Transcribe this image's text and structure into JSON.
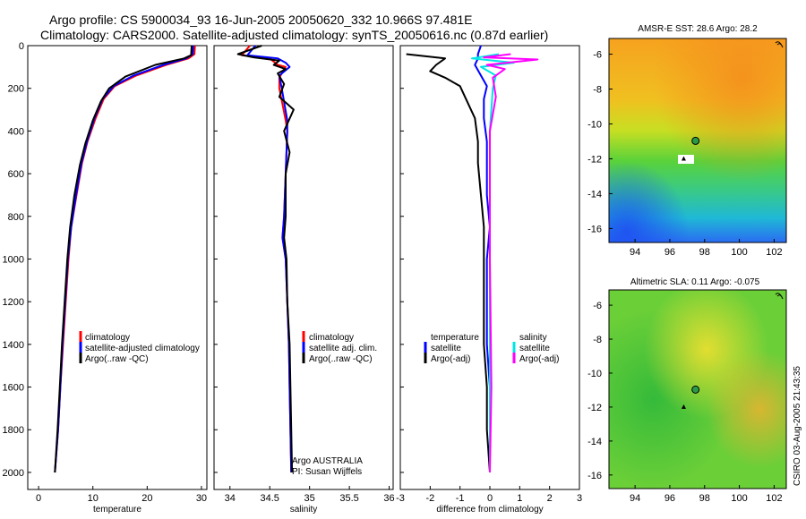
{
  "title": {
    "line1": "Argo profile: CS 5900034_93 16-Jun-2005 20050620_332 10.966S 97.481E",
    "line2": "Climatology: CARS2000. Satellite-adjusted climatology: synTS_20050616.nc (0.87d earlier)"
  },
  "colors": {
    "climatology": "#ff0000",
    "satellite": "#0000ff",
    "argo": "#000000",
    "salinity_sat": "#00e5e5",
    "salinity_argo": "#ff00ff",
    "marker": "#2a9a4a"
  },
  "chart_data": [
    {
      "type": "line",
      "id": "temperature",
      "xlabel": "temperature",
      "xlim": [
        -2,
        31
      ],
      "ylim": [
        0,
        2080
      ],
      "y_inverted": true,
      "xticks": [
        0,
        10,
        20,
        30
      ],
      "xtick_labels": [
        "0",
        "10",
        "20",
        "30"
      ],
      "yticks": [
        0,
        200,
        400,
        600,
        800,
        1000,
        1200,
        1400,
        1600,
        1800,
        2000
      ],
      "ytick_labels": [
        "0",
        "200",
        "400",
        "600",
        "800",
        "1000",
        "1200",
        "1400",
        "1600",
        "1800",
        "2000"
      ],
      "legend": [
        "climatology",
        "satellite-adjusted climatology",
        "Argo(..raw -QC)"
      ],
      "series": [
        {
          "name": "climatology",
          "color": "#ff0000",
          "points": [
            [
              28.8,
              0
            ],
            [
              28.7,
              40
            ],
            [
              27.6,
              60
            ],
            [
              23.5,
              90
            ],
            [
              18,
              140
            ],
            [
              14,
              190
            ],
            [
              12,
              250
            ],
            [
              10.5,
              340
            ],
            [
              9,
              450
            ],
            [
              8,
              550
            ],
            [
              7,
              700
            ],
            [
              6,
              850
            ],
            [
              5.5,
              1000
            ],
            [
              5,
              1200
            ],
            [
              4.5,
              1400
            ],
            [
              4,
              1600
            ],
            [
              3.6,
              1800
            ],
            [
              3,
              2000
            ]
          ]
        },
        {
          "name": "satellite-adjusted climatology",
          "color": "#0000ff",
          "points": [
            [
              28.5,
              0
            ],
            [
              28.4,
              40
            ],
            [
              27.2,
              60
            ],
            [
              23,
              90
            ],
            [
              17.5,
              140
            ],
            [
              13.8,
              190
            ],
            [
              11.8,
              250
            ],
            [
              10.3,
              340
            ],
            [
              8.9,
              450
            ],
            [
              7.9,
              550
            ],
            [
              6.9,
              700
            ],
            [
              6,
              850
            ],
            [
              5.4,
              1000
            ],
            [
              4.9,
              1200
            ],
            [
              4.4,
              1400
            ],
            [
              4,
              1600
            ],
            [
              3.6,
              1800
            ],
            [
              3,
              2000
            ]
          ]
        },
        {
          "name": "Argo(..raw -QC)",
          "color": "#000000",
          "points": [
            [
              28.2,
              0
            ],
            [
              28.1,
              45
            ],
            [
              26.8,
              60
            ],
            [
              21.5,
              90
            ],
            [
              16,
              145
            ],
            [
              13,
              200
            ],
            [
              11.5,
              260
            ],
            [
              10,
              350
            ],
            [
              8.6,
              460
            ],
            [
              7.6,
              560
            ],
            [
              6.6,
              700
            ],
            [
              5.8,
              850
            ],
            [
              5.3,
              1000
            ],
            [
              4.8,
              1200
            ],
            [
              4.3,
              1400
            ],
            [
              3.9,
              1600
            ],
            [
              3.5,
              1800
            ],
            [
              3,
              2000
            ]
          ]
        }
      ]
    },
    {
      "type": "line",
      "id": "salinity",
      "xlabel": "salinity",
      "xlim": [
        33.8,
        36.05
      ],
      "ylim": [
        0,
        2080
      ],
      "y_inverted": true,
      "xticks": [
        34,
        34.5,
        35,
        35.5,
        36
      ],
      "xtick_labels": [
        "34",
        "34.5",
        "35",
        "35.5",
        "36"
      ],
      "legend": [
        "climatology",
        "satellite adj. clim.",
        "Argo(..raw -QC)"
      ],
      "annotation": [
        "Argo AUSTRALIA",
        "PI: Susan Wijffels"
      ],
      "series": [
        {
          "name": "climatology",
          "color": "#ff0000",
          "points": [
            [
              34.25,
              0
            ],
            [
              34.15,
              45
            ],
            [
              34.5,
              60
            ],
            [
              34.6,
              90
            ],
            [
              34.7,
              100
            ],
            [
              34.62,
              150
            ],
            [
              34.62,
              200
            ],
            [
              34.7,
              350
            ],
            [
              34.72,
              400
            ],
            [
              34.7,
              600
            ],
            [
              34.68,
              800
            ],
            [
              34.66,
              900
            ],
            [
              34.7,
              1000
            ],
            [
              34.72,
              1200
            ],
            [
              34.74,
              1400
            ],
            [
              34.75,
              1600
            ],
            [
              34.76,
              1800
            ],
            [
              34.77,
              2000
            ]
          ]
        },
        {
          "name": "satellite adj. clim.",
          "color": "#0000ff",
          "points": [
            [
              34.32,
              0
            ],
            [
              34.22,
              45
            ],
            [
              34.6,
              60
            ],
            [
              34.7,
              80
            ],
            [
              34.75,
              100
            ],
            [
              34.62,
              140
            ],
            [
              34.65,
              200
            ],
            [
              34.72,
              350
            ],
            [
              34.72,
              400
            ],
            [
              34.7,
              600
            ],
            [
              34.68,
              800
            ],
            [
              34.66,
              900
            ],
            [
              34.7,
              1000
            ],
            [
              34.72,
              1200
            ],
            [
              34.74,
              1400
            ],
            [
              34.75,
              1600
            ],
            [
              34.76,
              1800
            ],
            [
              34.77,
              2000
            ]
          ]
        },
        {
          "name": "Argo(..raw -QC)",
          "color": "#000000",
          "points": [
            [
              34.4,
              0
            ],
            [
              34.1,
              40
            ],
            [
              34.3,
              55
            ],
            [
              34.62,
              70
            ],
            [
              34.55,
              90
            ],
            [
              34.7,
              110
            ],
            [
              34.6,
              130
            ],
            [
              34.68,
              180
            ],
            [
              34.62,
              240
            ],
            [
              34.8,
              300
            ],
            [
              34.68,
              400
            ],
            [
              34.75,
              500
            ],
            [
              34.7,
              600
            ],
            [
              34.7,
              800
            ],
            [
              34.68,
              900
            ],
            [
              34.71,
              1000
            ],
            [
              34.72,
              1200
            ],
            [
              34.75,
              1400
            ],
            [
              34.76,
              1600
            ],
            [
              34.77,
              1800
            ],
            [
              34.78,
              2000
            ]
          ]
        }
      ]
    },
    {
      "type": "line",
      "id": "difference",
      "xlabel": "difference from climatology",
      "xlim": [
        -3,
        3
      ],
      "ylim": [
        0,
        2080
      ],
      "y_inverted": true,
      "xticks": [
        -3,
        -2,
        -1,
        0,
        1,
        2,
        3
      ],
      "xtick_labels": [
        "-3",
        "-2",
        "-1",
        "0",
        "1",
        "2",
        "3"
      ],
      "legend_left": [
        "temperature",
        "satellite",
        "Argo(-adj)"
      ],
      "legend_right": [
        "salinity",
        "satellite",
        "Argo(-adj)"
      ],
      "series": [
        {
          "name": "temperature satellite",
          "color": "#0000ff",
          "points": [
            [
              -0.3,
              0
            ],
            [
              -0.4,
              40
            ],
            [
              -0.4,
              60
            ],
            [
              -0.5,
              90
            ],
            [
              -0.3,
              140
            ],
            [
              -0.1,
              190
            ],
            [
              -0.2,
              250
            ],
            [
              -0.2,
              340
            ],
            [
              -0.1,
              450
            ],
            [
              -0.1,
              550
            ],
            [
              -0.1,
              700
            ],
            [
              0,
              850
            ],
            [
              -0.1,
              1000
            ],
            [
              -0.1,
              1200
            ],
            [
              -0.1,
              1400
            ],
            [
              0,
              1600
            ],
            [
              0,
              1800
            ],
            [
              0,
              2000
            ]
          ]
        },
        {
          "name": "temperature Argo(-adj)",
          "color": "#000000",
          "points": [
            [
              -2.8,
              40
            ],
            [
              -1.5,
              60
            ],
            [
              -1.8,
              90
            ],
            [
              -2,
              120
            ],
            [
              -1.5,
              150
            ],
            [
              -1.0,
              190
            ],
            [
              -0.8,
              250
            ],
            [
              -0.5,
              340
            ],
            [
              -0.4,
              450
            ],
            [
              -0.4,
              550
            ],
            [
              -0.3,
              700
            ],
            [
              -0.2,
              850
            ],
            [
              -0.2,
              1000
            ],
            [
              -0.2,
              1200
            ],
            [
              -0.2,
              1400
            ],
            [
              -0.1,
              1600
            ],
            [
              -0.1,
              1800
            ],
            [
              0,
              2000
            ]
          ]
        },
        {
          "name": "salinity satellite",
          "color": "#00e5e5",
          "points": [
            [
              0.3,
              40
            ],
            [
              -0.6,
              60
            ],
            [
              0.8,
              80
            ],
            [
              -0.3,
              100
            ],
            [
              0.2,
              140
            ],
            [
              0.1,
              200
            ],
            [
              0,
              400
            ],
            [
              0,
              1000
            ],
            [
              0,
              2000
            ]
          ]
        },
        {
          "name": "salinity Argo(-adj)",
          "color": "#ff00ff",
          "points": [
            [
              0.7,
              40
            ],
            [
              -0.2,
              55
            ],
            [
              1.6,
              65
            ],
            [
              -0.1,
              90
            ],
            [
              0.5,
              110
            ],
            [
              0.1,
              150
            ],
            [
              0.2,
              240
            ],
            [
              0,
              400
            ],
            [
              0,
              1000
            ],
            [
              0.05,
              1600
            ],
            [
              0,
              2000
            ]
          ]
        }
      ]
    }
  ],
  "maps": [
    {
      "id": "sst",
      "title": "AMSR-E SST: 28.6 Argo: 28.2",
      "xticks": [
        "94",
        "96",
        "98",
        "100",
        "102"
      ],
      "yticks": [
        "-6",
        "-8",
        "-10",
        "-12",
        "-14",
        "-16"
      ],
      "lon_range": [
        92.5,
        102.7
      ],
      "lat_range": [
        -16.8,
        -5.1
      ],
      "marker": {
        "lon": 97.48,
        "lat": -10.97
      },
      "track": {
        "lon": 96.8,
        "lat": -12
      }
    },
    {
      "id": "sla",
      "title": "Altimetric SLA: 0.11 Argo: -0.075",
      "xticks": [
        "94",
        "96",
        "98",
        "100",
        "102"
      ],
      "yticks": [
        "-6",
        "-8",
        "-10",
        "-12",
        "-14",
        "-16"
      ],
      "lon_range": [
        92.5,
        102.7
      ],
      "lat_range": [
        -16.8,
        -5.1
      ],
      "marker": {
        "lon": 97.48,
        "lat": -10.97
      },
      "track": {
        "lon": 96.8,
        "lat": -12
      }
    }
  ],
  "stamp": "CSIRO 03-Aug-2005 21:43:35"
}
